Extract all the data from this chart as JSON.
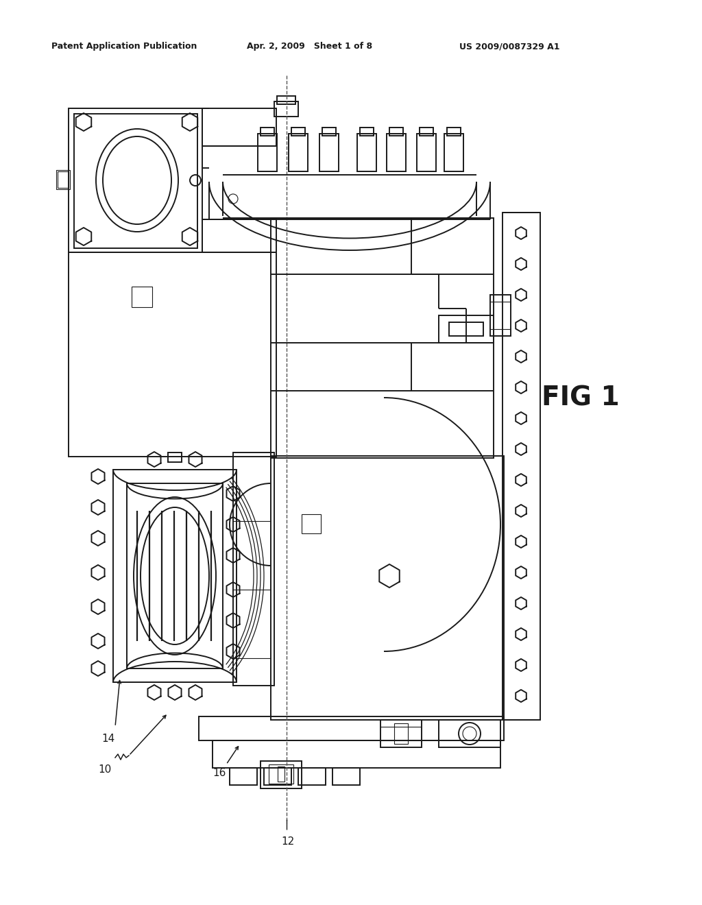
{
  "background_color": "#ffffff",
  "line_color": "#1a1a1a",
  "header_left": "Patent Application Publication",
  "header_center": "Apr. 2, 2009   Sheet 1 of 8",
  "header_right": "US 2009/0087329 A1",
  "fig_label": "FIG 1",
  "lw": 1.4,
  "lw_thin": 0.8,
  "lw_thick": 2.0
}
